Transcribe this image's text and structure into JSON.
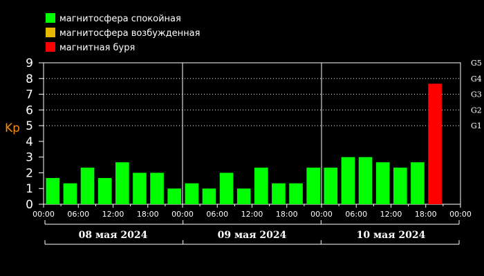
{
  "legend": [
    {
      "label": "магнитосфера спокойная",
      "color": "#00ff00"
    },
    {
      "label": "магнитосфера возбужденная",
      "color": "#e6b800"
    },
    {
      "label": "магнитная буря",
      "color": "#ff0000"
    }
  ],
  "colors": {
    "quiet": "#00ff00",
    "active": "#e6b800",
    "storm": "#ff0000",
    "ylabel": "#ff8c00",
    "grid": "#ffffff"
  },
  "chart_data": {
    "type": "bar",
    "ylabel": "Kp",
    "ylim": [
      0,
      9
    ],
    "yticks": [
      "0",
      "1",
      "2",
      "3",
      "4",
      "5",
      "6",
      "7",
      "8",
      "9"
    ],
    "g_scale": [
      {
        "label": "G1",
        "value": 5
      },
      {
        "label": "G2",
        "value": 6
      },
      {
        "label": "G3",
        "value": 7
      },
      {
        "label": "G4",
        "value": 8
      },
      {
        "label": "G5",
        "value": 9
      }
    ],
    "grid": "dotted horizontal at 5-9",
    "days": [
      "08 мая 2024",
      "09 мая 2024",
      "10 мая 2024"
    ],
    "xtick_labels": [
      "00:00",
      "06:00",
      "12:00",
      "18:00",
      "00:00",
      "06:00",
      "12:00",
      "18:00",
      "00:00",
      "06:00",
      "12:00",
      "18:00",
      "00:00"
    ],
    "bars": [
      {
        "day": 0,
        "slot": 0,
        "value": 1.67,
        "level": "quiet"
      },
      {
        "day": 0,
        "slot": 1,
        "value": 1.33,
        "level": "quiet"
      },
      {
        "day": 0,
        "slot": 2,
        "value": 2.33,
        "level": "quiet"
      },
      {
        "day": 0,
        "slot": 3,
        "value": 1.67,
        "level": "quiet"
      },
      {
        "day": 0,
        "slot": 4,
        "value": 2.67,
        "level": "quiet"
      },
      {
        "day": 0,
        "slot": 5,
        "value": 2.0,
        "level": "quiet"
      },
      {
        "day": 0,
        "slot": 6,
        "value": 2.0,
        "level": "quiet"
      },
      {
        "day": 0,
        "slot": 7,
        "value": 1.0,
        "level": "quiet"
      },
      {
        "day": 1,
        "slot": 0,
        "value": 1.33,
        "level": "quiet"
      },
      {
        "day": 1,
        "slot": 1,
        "value": 1.0,
        "level": "quiet"
      },
      {
        "day": 1,
        "slot": 2,
        "value": 2.0,
        "level": "quiet"
      },
      {
        "day": 1,
        "slot": 3,
        "value": 1.0,
        "level": "quiet"
      },
      {
        "day": 1,
        "slot": 4,
        "value": 2.33,
        "level": "quiet"
      },
      {
        "day": 1,
        "slot": 5,
        "value": 1.33,
        "level": "quiet"
      },
      {
        "day": 1,
        "slot": 6,
        "value": 1.33,
        "level": "quiet"
      },
      {
        "day": 1,
        "slot": 7,
        "value": 2.33,
        "level": "quiet"
      },
      {
        "day": 2,
        "slot": 0,
        "value": 2.33,
        "level": "quiet"
      },
      {
        "day": 2,
        "slot": 1,
        "value": 3.0,
        "level": "quiet"
      },
      {
        "day": 2,
        "slot": 2,
        "value": 3.0,
        "level": "quiet"
      },
      {
        "day": 2,
        "slot": 3,
        "value": 2.67,
        "level": "quiet"
      },
      {
        "day": 2,
        "slot": 4,
        "value": 2.33,
        "level": "quiet"
      },
      {
        "day": 2,
        "slot": 5,
        "value": 2.67,
        "level": "quiet"
      },
      {
        "day": 2,
        "slot": 6,
        "value": 7.67,
        "level": "storm"
      }
    ]
  }
}
